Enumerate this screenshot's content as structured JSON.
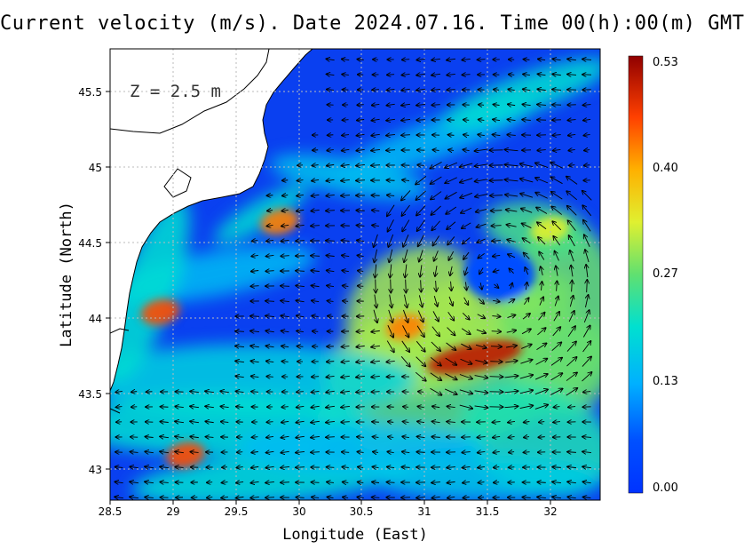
{
  "title": "Current velocity (m/s). Date 2024.07.16. Time 00(h):00(m) GMT",
  "depth_label": "Z = 2.5 m",
  "xlabel": "Longitude (East)",
  "ylabel": "Latitude (North)",
  "colorbar": {
    "tick_labels": [
      "0.53",
      "0.40",
      "0.27",
      "0.13",
      "0.00"
    ],
    "min": 0.0,
    "max": 0.53
  },
  "chart_data": {
    "type": "heatmap",
    "xlabel": "Longitude (East)",
    "ylabel": "Latitude (North)",
    "xlim": [
      28.5,
      32.4
    ],
    "ylim": [
      42.8,
      45.8
    ],
    "x_ticks": [
      "28.5",
      "29",
      "29.5",
      "30",
      "30.5",
      "31",
      "31.5",
      "32"
    ],
    "y_ticks": [
      "43",
      "43.5",
      "44",
      "44.5",
      "45",
      "45.5"
    ],
    "grid": true,
    "value_range": [
      0.0,
      0.53
    ],
    "features": [
      {
        "lon": 31.4,
        "lat": 43.75,
        "speed": 0.5
      },
      {
        "lon": 30.85,
        "lat": 43.95,
        "speed": 0.42
      },
      {
        "lon": 29.1,
        "lat": 43.1,
        "speed": 0.45
      },
      {
        "lon": 28.9,
        "lat": 44.05,
        "speed": 0.45
      },
      {
        "lon": 29.85,
        "lat": 44.65,
        "speed": 0.42
      },
      {
        "lon": 32.0,
        "lat": 44.6,
        "speed": 0.33
      },
      {
        "lon": 31.8,
        "lat": 44.1,
        "speed": 0.28
      }
    ]
  }
}
